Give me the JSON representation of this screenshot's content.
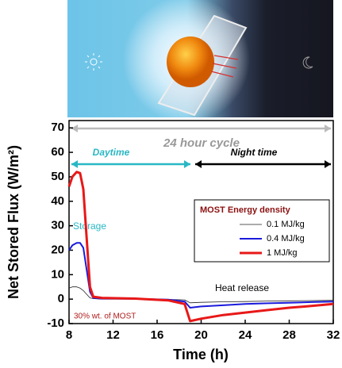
{
  "chart_data": {
    "type": "line",
    "xlabel": "Time (h)",
    "ylabel": "Net Stored Flux (W/m²)",
    "xlim": [
      8,
      32
    ],
    "xticks": [
      8,
      12,
      16,
      20,
      24,
      28,
      32
    ],
    "ylim": [
      -10,
      73
    ],
    "yticks": [
      -10,
      0,
      10,
      20,
      30,
      40,
      50,
      60,
      70
    ],
    "annotations": [
      "24 hour cycle",
      "Daytime",
      "Night time",
      "Storage",
      "Heat release",
      "30% wt. of MOST"
    ],
    "legend_title": "MOST Energy density",
    "x": [
      8,
      8.3,
      8.7,
      9,
      9.3,
      9.6,
      9.9,
      10.2,
      11,
      14,
      17,
      18.5,
      19,
      20,
      22,
      24,
      26,
      28,
      30,
      32
    ],
    "series": [
      {
        "name": "0.1 MJ/kg",
        "color": "#222222",
        "width": 0.8,
        "values": [
          4.5,
          5,
          5,
          4.5,
          3.5,
          2,
          0.5,
          0.2,
          0,
          0,
          -0.1,
          -0.3,
          -1.5,
          -1.3,
          -1.1,
          -1,
          -0.8,
          -0.7,
          -0.6,
          -0.5
        ]
      },
      {
        "name": "0.4 MJ/kg",
        "color": "#1a1adc",
        "width": 2,
        "values": [
          20,
          22,
          23,
          23,
          21,
          12,
          3,
          0.5,
          0.2,
          0.1,
          -0.2,
          -1,
          -3.5,
          -3,
          -2.5,
          -2,
          -1.7,
          -1.5,
          -1.2,
          -1
        ]
      },
      {
        "name": "1 MJ/kg",
        "color": "#e81818",
        "width": 3,
        "values": [
          46,
          50,
          52,
          51.5,
          45,
          25,
          5,
          1,
          0.5,
          0.2,
          -0.5,
          -2,
          -9,
          -8,
          -6.5,
          -5.5,
          -4.5,
          -3.5,
          -2.8,
          -2
        ]
      }
    ]
  }
}
